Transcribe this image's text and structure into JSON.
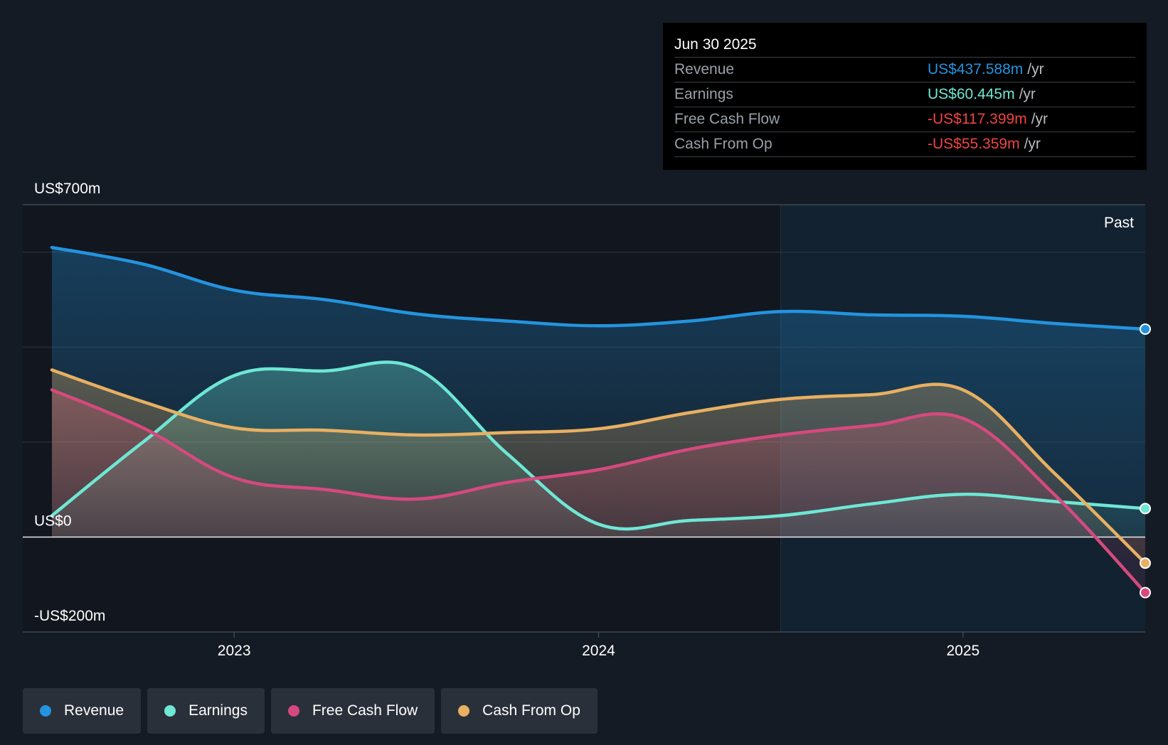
{
  "colors": {
    "revenue": "#2394df",
    "earnings": "#6ee7d5",
    "fcf": "#d6497f",
    "cfo": "#e8b062"
  },
  "chart_data": {
    "type": "area",
    "y_axis": {
      "min": -200,
      "max": 700,
      "labels": [
        "US$700m",
        "US$0",
        "-US$200m"
      ],
      "label_values": [
        700,
        0,
        -200
      ],
      "grid": [
        700,
        600,
        400,
        200,
        0,
        -200
      ]
    },
    "x_axis": {
      "ticks": [
        2023,
        2024,
        2025
      ],
      "tick_labels": [
        "2023",
        "2024",
        "2025"
      ],
      "range": [
        2022.42,
        2025.5
      ]
    },
    "past_start": 2024.5,
    "past_label": "Past",
    "series": [
      {
        "name": "Revenue",
        "key": "revenue",
        "x": [
          2022.5,
          2022.75,
          2023.0,
          2023.25,
          2023.5,
          2023.75,
          2024.0,
          2024.25,
          2024.5,
          2024.75,
          2025.0,
          2025.25,
          2025.5
        ],
        "values": [
          610,
          575,
          520,
          500,
          470,
          455,
          445,
          455,
          475,
          468,
          465,
          450,
          438
        ]
      },
      {
        "name": "Earnings",
        "key": "earnings",
        "x": [
          2022.5,
          2022.75,
          2023.0,
          2023.25,
          2023.5,
          2023.75,
          2024.0,
          2024.25,
          2024.5,
          2024.75,
          2025.0,
          2025.25,
          2025.5
        ],
        "values": [
          45,
          200,
          340,
          350,
          355,
          175,
          27,
          35,
          45,
          70,
          90,
          75,
          60
        ]
      },
      {
        "name": "Free Cash Flow",
        "key": "fcf",
        "x": [
          2022.5,
          2022.75,
          2023.0,
          2023.25,
          2023.5,
          2023.75,
          2024.0,
          2024.25,
          2024.5,
          2024.75,
          2025.0,
          2025.25,
          2025.5
        ],
        "values": [
          310,
          230,
          125,
          100,
          80,
          115,
          142,
          185,
          215,
          235,
          250,
          90,
          -117
        ]
      },
      {
        "name": "Cash From Op",
        "key": "cfo",
        "x": [
          2022.5,
          2022.75,
          2023.0,
          2023.25,
          2023.5,
          2023.75,
          2024.0,
          2024.25,
          2024.5,
          2024.75,
          2025.0,
          2025.25,
          2025.5
        ],
        "values": [
          352,
          285,
          230,
          225,
          215,
          220,
          228,
          262,
          290,
          300,
          310,
          135,
          -55
        ]
      }
    ]
  },
  "tooltip": {
    "date": "Jun 30 2025",
    "rows": [
      {
        "label": "Revenue",
        "value": "US$437.588m",
        "unit": "/yr"
      },
      {
        "label": "Earnings",
        "value": "US$60.445m",
        "unit": "/yr"
      },
      {
        "label": "Free Cash Flow",
        "value": "-US$117.399m",
        "unit": "/yr"
      },
      {
        "label": "Cash From Op",
        "value": "-US$55.359m",
        "unit": "/yr"
      }
    ]
  },
  "legend": [
    {
      "label": "Revenue"
    },
    {
      "label": "Earnings"
    },
    {
      "label": "Free Cash Flow"
    },
    {
      "label": "Cash From Op"
    }
  ]
}
